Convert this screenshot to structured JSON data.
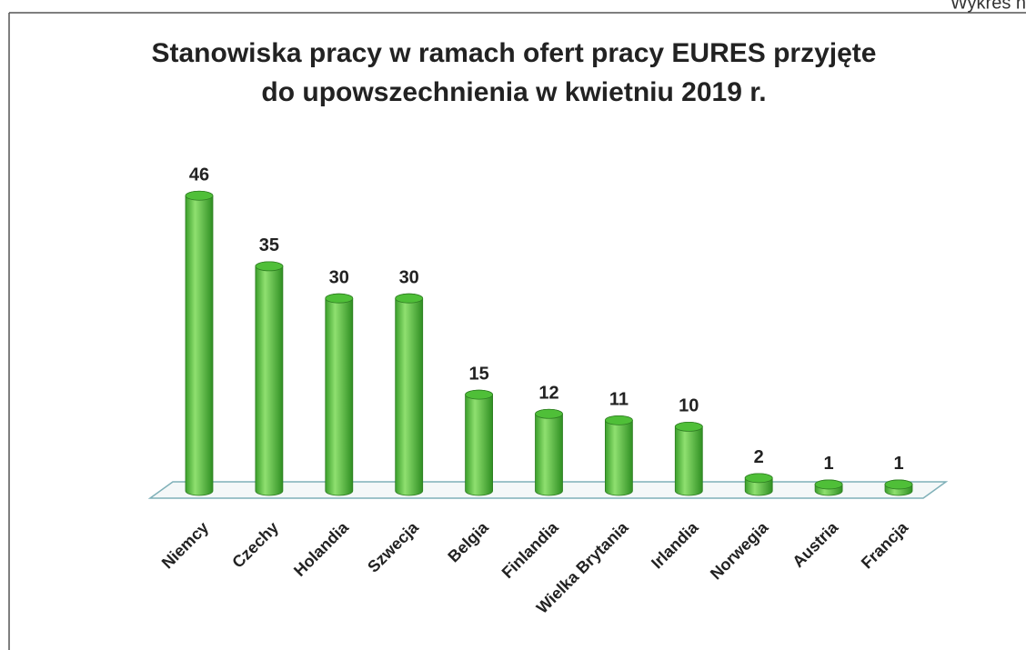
{
  "chart_data": {
    "type": "bar",
    "annotation": "Wykres n",
    "title": [
      "Stanowiska pracy w ramach ofert pracy EURES przyjęte",
      "do upowszechnienia w kwietniu 2019 r."
    ],
    "categories": [
      "Niemcy",
      "Czechy",
      "Holandia",
      "Szwecja",
      "Belgia",
      "Finlandia",
      "Wielka Brytania",
      "Irlandia",
      "Norwegia",
      "Austria",
      "Francja"
    ],
    "values": [
      46,
      35,
      30,
      30,
      15,
      12,
      11,
      10,
      2,
      1,
      1
    ],
    "color": "#4fbf38",
    "ylim": [
      0,
      50
    ]
  }
}
